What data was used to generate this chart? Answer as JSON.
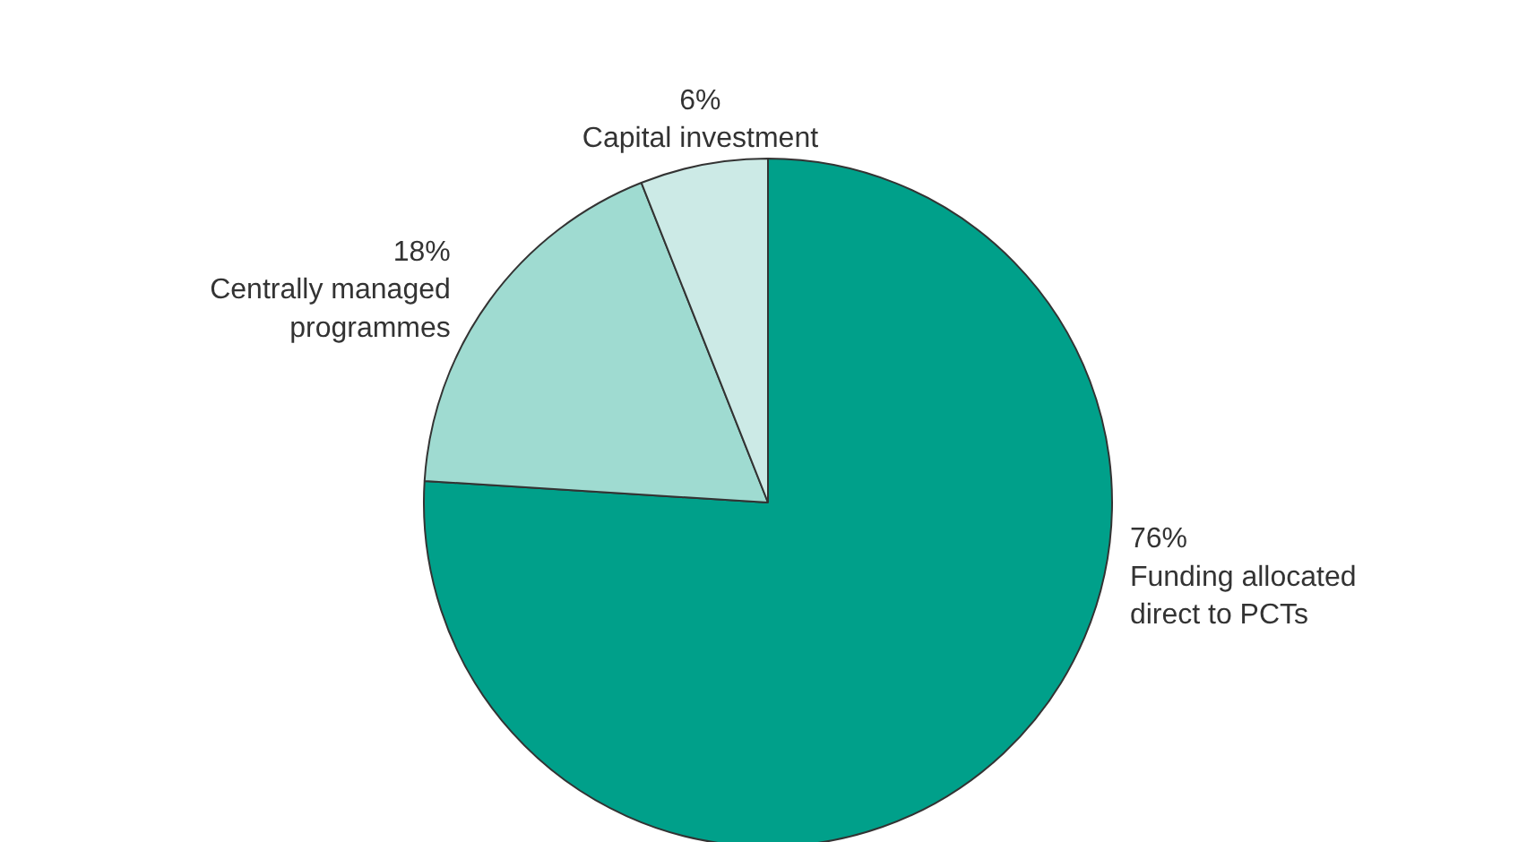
{
  "chart_data": {
    "type": "pie",
    "categories": [
      "Funding allocated direct to PCTs",
      "Centrally managed programmes",
      "Capital investment"
    ],
    "values": [
      76,
      18,
      6
    ],
    "colors": [
      "#00a08a",
      "#9fdbd1",
      "#cceae6"
    ],
    "value_labels": [
      "76%",
      "18%",
      "6%"
    ]
  }
}
